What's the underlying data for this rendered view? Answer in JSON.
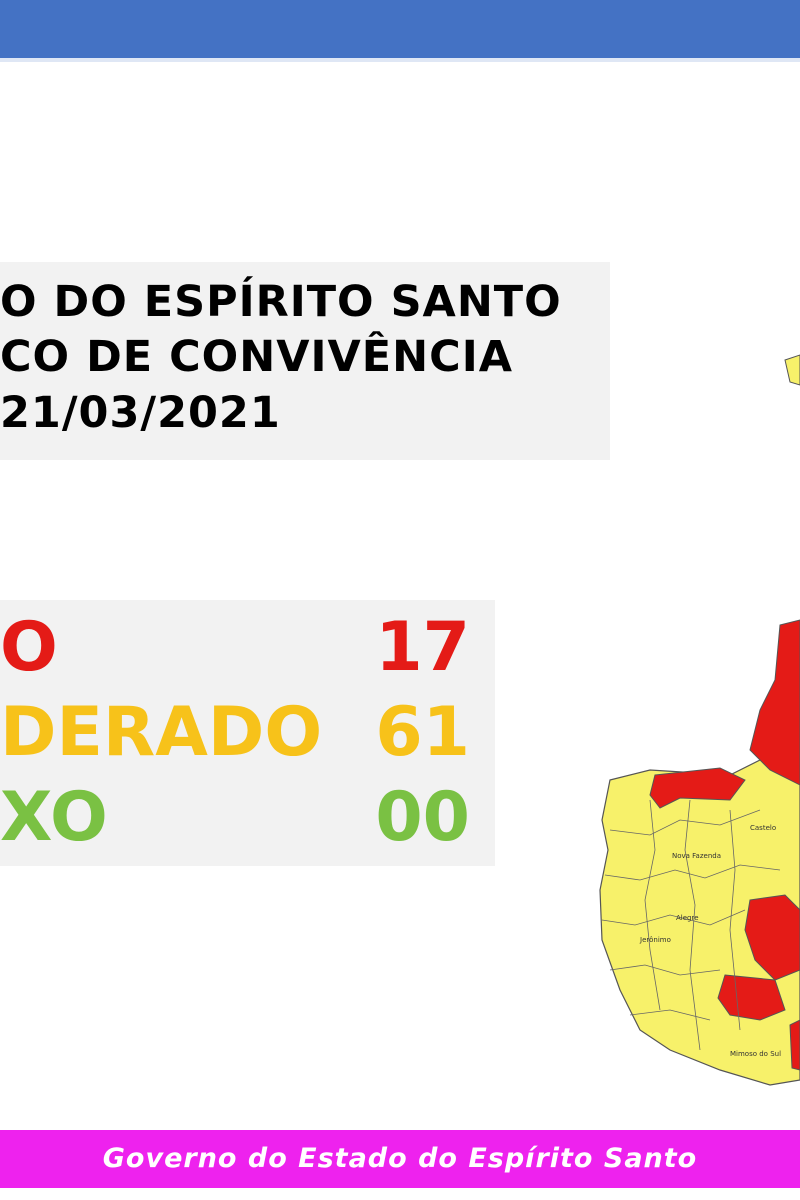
{
  "header": {
    "bar_color": "#4472c4"
  },
  "title": {
    "line1": "O DO ESPÍRITO SANTO",
    "line2": "CO DE CONVIVÊNCIA",
    "line3": "21/03/2021"
  },
  "risk": {
    "high": {
      "label": "O",
      "count": "17",
      "color": "#e41b17"
    },
    "moderate": {
      "label": "DERADO",
      "count": "61",
      "color": "#f7c21a"
    },
    "low": {
      "label": "XO",
      "count": "00",
      "color": "#7ac143"
    }
  },
  "map": {
    "colors": {
      "high": "#e41b17",
      "moderate": "#f7f16a",
      "border": "#555555"
    },
    "labels": [
      "Alegre",
      "Mimoso do Sul",
      "Nova Fazenda",
      "Jerônimo",
      "Castelo"
    ]
  },
  "footer": {
    "text": "Governo do Estado do Espírito Santo",
    "bar_color": "#ee22ee"
  }
}
